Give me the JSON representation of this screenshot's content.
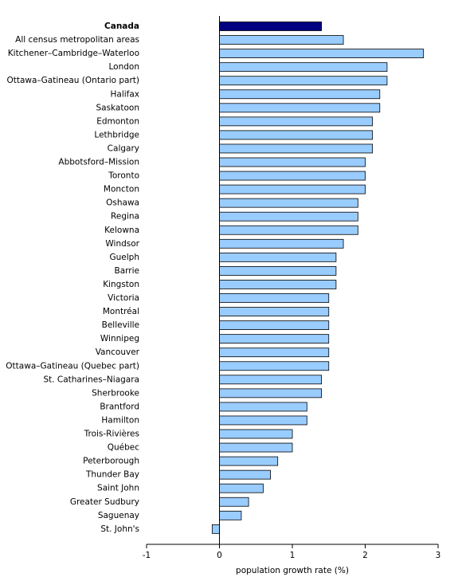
{
  "chart_data": {
    "type": "barh",
    "xlabel": "population growth rate (%)",
    "categories": [
      "Canada",
      "All census metropolitan areas",
      "Kitchener–Cambridge–Waterloo",
      "London",
      "Ottawa–Gatineau (Ontario part)",
      "Halifax",
      "Saskatoon",
      "Edmonton",
      "Lethbridge",
      "Calgary",
      "Abbotsford–Mission",
      "Toronto",
      "Moncton",
      "Oshawa",
      "Regina",
      "Kelowna",
      "Windsor",
      "Guelph",
      "Barrie",
      "Kingston",
      "Victoria",
      "Montréal",
      "Belleville",
      "Winnipeg",
      "Vancouver",
      "Ottawa–Gatineau (Quebec part)",
      "St. Catharines–Niagara",
      "Sherbrooke",
      "Brantford",
      "Hamilton",
      "Trois-Rivières",
      "Québec",
      "Peterborough",
      "Thunder Bay",
      "Saint John",
      "Greater Sudbury",
      "Saguenay",
      "St. John's"
    ],
    "values": [
      1.4,
      1.7,
      2.8,
      2.3,
      2.3,
      2.2,
      2.2,
      2.1,
      2.1,
      2.1,
      2.0,
      2.0,
      2.0,
      1.9,
      1.9,
      1.9,
      1.7,
      1.6,
      1.6,
      1.6,
      1.5,
      1.5,
      1.5,
      1.5,
      1.5,
      1.5,
      1.4,
      1.4,
      1.2,
      1.2,
      1.0,
      1.0,
      0.8,
      0.7,
      0.6,
      0.4,
      0.3,
      -0.1
    ],
    "color": "#99ccff",
    "colors": [
      "#000080",
      "#99ccff",
      "#99ccff",
      "#99ccff",
      "#99ccff",
      "#99ccff",
      "#99ccff",
      "#99ccff",
      "#99ccff",
      "#99ccff",
      "#99ccff",
      "#99ccff",
      "#99ccff",
      "#99ccff",
      "#99ccff",
      "#99ccff",
      "#99ccff",
      "#99ccff",
      "#99ccff",
      "#99ccff",
      "#99ccff",
      "#99ccff",
      "#99ccff",
      "#99ccff",
      "#99ccff",
      "#99ccff",
      "#99ccff",
      "#99ccff",
      "#99ccff",
      "#99ccff",
      "#99ccff",
      "#99ccff",
      "#99ccff",
      "#99ccff",
      "#99ccff",
      "#99ccff",
      "#99ccff",
      "#99ccff"
    ],
    "xlim": [
      -1,
      3
    ],
    "xticks": [
      -1,
      0,
      1,
      2,
      3
    ],
    "grid": false
  }
}
